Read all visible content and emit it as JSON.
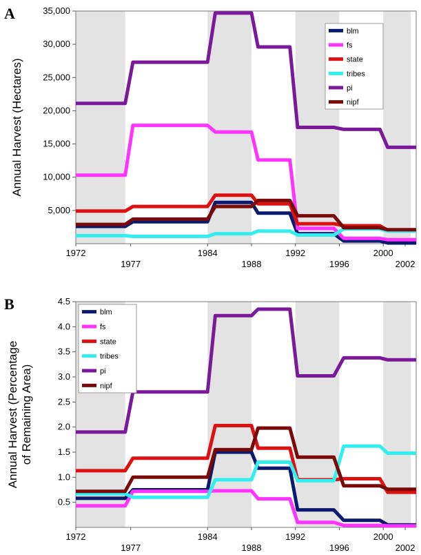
{
  "chart_data": [
    {
      "panel_label": "A",
      "type": "line",
      "ylabel": "Annual Harvest (Hectares)",
      "ylim": [
        0,
        35000
      ],
      "xlim": [
        1972,
        2003
      ],
      "yticks": [
        5000,
        10000,
        15000,
        20000,
        25000,
        30000,
        35000
      ],
      "ytick_labels": [
        "5,000",
        "10,000",
        "15,000",
        "20,000",
        "25,000",
        "30,000",
        "35,000"
      ],
      "xticks_top_row": [
        1972,
        1984,
        1992,
        2000
      ],
      "xticks_bottom_row": [
        1977,
        1988,
        1996,
        2002
      ],
      "shaded_bands": [
        [
          1972,
          1976.5
        ],
        [
          1984,
          1988
        ],
        [
          1992,
          1996
        ],
        [
          2000,
          2002.5
        ]
      ],
      "legend_position": "top-right",
      "series": [
        {
          "name": "blm",
          "color": "#0a1a6e",
          "points": [
            [
              1972,
              2600
            ],
            [
              1976.5,
              2600
            ],
            [
              1977.2,
              3300
            ],
            [
              1984,
              3300
            ],
            [
              1984.7,
              6200
            ],
            [
              1988,
              6200
            ],
            [
              1988.6,
              4600
            ],
            [
              1991.5,
              4600
            ],
            [
              1992.2,
              1500
            ],
            [
              1995.5,
              1500
            ],
            [
              1996.4,
              400
            ],
            [
              1999.7,
              400
            ],
            [
              2000.4,
              100
            ],
            [
              2003,
              100
            ]
          ]
        },
        {
          "name": "fs",
          "color": "#ff33ff",
          "points": [
            [
              1972,
              10300
            ],
            [
              1976.5,
              10300
            ],
            [
              1977.2,
              17800
            ],
            [
              1984,
              17800
            ],
            [
              1984.7,
              16800
            ],
            [
              1988,
              16800
            ],
            [
              1988.6,
              12600
            ],
            [
              1991.5,
              12600
            ],
            [
              1992.2,
              2300
            ],
            [
              1995.5,
              2300
            ],
            [
              1996.4,
              800
            ],
            [
              1999.7,
              800
            ],
            [
              2000.4,
              600
            ],
            [
              2003,
              600
            ]
          ]
        },
        {
          "name": "state",
          "color": "#dd1111",
          "points": [
            [
              1972,
              4900
            ],
            [
              1976.5,
              4900
            ],
            [
              1977.2,
              5600
            ],
            [
              1984,
              5600
            ],
            [
              1984.7,
              7300
            ],
            [
              1988,
              7300
            ],
            [
              1988.6,
              6000
            ],
            [
              1991.5,
              6000
            ],
            [
              1992.2,
              3000
            ],
            [
              1995.5,
              3000
            ],
            [
              1996.4,
              2700
            ],
            [
              1999.7,
              2700
            ],
            [
              2000.4,
              2000
            ],
            [
              2003,
              2000
            ]
          ]
        },
        {
          "name": "tribes",
          "color": "#33eeee",
          "points": [
            [
              1972,
              1200
            ],
            [
              1976.5,
              1200
            ],
            [
              1977.2,
              1100
            ],
            [
              1984,
              1100
            ],
            [
              1984.7,
              1500
            ],
            [
              1988,
              1500
            ],
            [
              1988.6,
              1900
            ],
            [
              1991.5,
              1900
            ],
            [
              1992.2,
              1300
            ],
            [
              1995.5,
              1300
            ],
            [
              1996.4,
              2200
            ],
            [
              1999.7,
              2200
            ],
            [
              2000.4,
              1900
            ],
            [
              2003,
              1900
            ]
          ]
        },
        {
          "name": "pi",
          "color": "#7a1a9a",
          "points": [
            [
              1972,
              21100
            ],
            [
              1976.5,
              21100
            ],
            [
              1977.2,
              27300
            ],
            [
              1984,
              27300
            ],
            [
              1984.7,
              34700
            ],
            [
              1988,
              34700
            ],
            [
              1988.6,
              29600
            ],
            [
              1991.5,
              29600
            ],
            [
              1992.2,
              17500
            ],
            [
              1995.5,
              17500
            ],
            [
              1996.4,
              17200
            ],
            [
              1999.7,
              17200
            ],
            [
              2000.4,
              14500
            ],
            [
              2003,
              14500
            ]
          ]
        },
        {
          "name": "nipf",
          "color": "#7a0a0a",
          "points": [
            [
              1972,
              2900
            ],
            [
              1976.5,
              2900
            ],
            [
              1977.2,
              3700
            ],
            [
              1984,
              3700
            ],
            [
              1984.7,
              5600
            ],
            [
              1988,
              5600
            ],
            [
              1988.6,
              6500
            ],
            [
              1991.5,
              6500
            ],
            [
              1992.2,
              4200
            ],
            [
              1995.5,
              4200
            ],
            [
              1996.4,
              2400
            ],
            [
              1999.7,
              2400
            ],
            [
              2000.4,
              2100
            ],
            [
              2003,
              2100
            ]
          ]
        }
      ]
    },
    {
      "panel_label": "B",
      "type": "line",
      "ylabel": "Annual Harvest (Percentage of Remaining Area)",
      "ylabel_lines": [
        "Annual Harvest (Percentage",
        "of Remaining Area)"
      ],
      "ylim": [
        0,
        4.5
      ],
      "xlim": [
        1972,
        2003
      ],
      "yticks": [
        0.5,
        1.0,
        1.5,
        2.0,
        2.5,
        3.0,
        3.5,
        4.0,
        4.5
      ],
      "ytick_labels": [
        "0.5",
        "1.0",
        "1.5",
        "2.0",
        "2.5",
        "3.0",
        "3.5",
        "4.0",
        "4.5"
      ],
      "xticks_top_row": [
        1972,
        1984,
        1992,
        2000
      ],
      "xticks_bottom_row": [
        1977,
        1988,
        1996,
        2002
      ],
      "shaded_bands": [
        [
          1972,
          1976.5
        ],
        [
          1984,
          1988
        ],
        [
          1992,
          1996
        ],
        [
          2000,
          2002.5
        ]
      ],
      "legend_position": "top-left",
      "series": [
        {
          "name": "blm",
          "color": "#0a1a6e",
          "points": [
            [
              1972,
              0.58
            ],
            [
              1976.5,
              0.58
            ],
            [
              1977.2,
              0.75
            ],
            [
              1984,
              0.75
            ],
            [
              1984.7,
              1.5
            ],
            [
              1988,
              1.5
            ],
            [
              1988.6,
              1.18
            ],
            [
              1991.5,
              1.18
            ],
            [
              1992.2,
              0.35
            ],
            [
              1995.5,
              0.35
            ],
            [
              1996.4,
              0.14
            ],
            [
              1999.7,
              0.14
            ],
            [
              2000.4,
              0.05
            ],
            [
              2003,
              0.05
            ]
          ]
        },
        {
          "name": "fs",
          "color": "#ff33ff",
          "points": [
            [
              1972,
              0.43
            ],
            [
              1976.5,
              0.43
            ],
            [
              1977.2,
              0.72
            ],
            [
              1984,
              0.72
            ],
            [
              1984.7,
              0.73
            ],
            [
              1988,
              0.73
            ],
            [
              1988.6,
              0.57
            ],
            [
              1991.5,
              0.57
            ],
            [
              1992.2,
              0.1
            ],
            [
              1995.5,
              0.1
            ],
            [
              1996.4,
              0.04
            ],
            [
              1999.7,
              0.04
            ],
            [
              2000.4,
              0.03
            ],
            [
              2003,
              0.03
            ]
          ]
        },
        {
          "name": "state",
          "color": "#dd1111",
          "points": [
            [
              1972,
              1.13
            ],
            [
              1976.5,
              1.13
            ],
            [
              1977.2,
              1.38
            ],
            [
              1984,
              1.38
            ],
            [
              1984.7,
              2.03
            ],
            [
              1988,
              2.03
            ],
            [
              1988.6,
              1.58
            ],
            [
              1991.5,
              1.58
            ],
            [
              1992.2,
              0.95
            ],
            [
              1995.5,
              0.95
            ],
            [
              1996.4,
              0.97
            ],
            [
              1999.7,
              0.97
            ],
            [
              2000.4,
              0.7
            ],
            [
              2003,
              0.7
            ]
          ]
        },
        {
          "name": "tribes",
          "color": "#33eeee",
          "points": [
            [
              1972,
              0.67
            ],
            [
              1976.5,
              0.67
            ],
            [
              1977.2,
              0.6
            ],
            [
              1984,
              0.6
            ],
            [
              1984.7,
              0.95
            ],
            [
              1988,
              0.95
            ],
            [
              1988.6,
              1.3
            ],
            [
              1991.5,
              1.3
            ],
            [
              1992.2,
              0.93
            ],
            [
              1995.5,
              0.93
            ],
            [
              1996.4,
              1.62
            ],
            [
              1999.7,
              1.62
            ],
            [
              2000.4,
              1.48
            ],
            [
              2003,
              1.48
            ]
          ]
        },
        {
          "name": "pi",
          "color": "#7a1a9a",
          "points": [
            [
              1972,
              1.9
            ],
            [
              1976.5,
              1.9
            ],
            [
              1977.2,
              2.7
            ],
            [
              1984,
              2.7
            ],
            [
              1984.7,
              4.22
            ],
            [
              1988,
              4.22
            ],
            [
              1988.6,
              4.35
            ],
            [
              1991.5,
              4.35
            ],
            [
              1992.2,
              3.02
            ],
            [
              1995.5,
              3.02
            ],
            [
              1996.4,
              3.38
            ],
            [
              1999.7,
              3.38
            ],
            [
              2000.4,
              3.34
            ],
            [
              2003,
              3.34
            ]
          ]
        },
        {
          "name": "nipf",
          "color": "#7a0a0a",
          "points": [
            [
              1972,
              0.72
            ],
            [
              1976.5,
              0.72
            ],
            [
              1977.2,
              1.0
            ],
            [
              1984,
              1.0
            ],
            [
              1984.7,
              1.55
            ],
            [
              1988,
              1.55
            ],
            [
              1988.6,
              1.98
            ],
            [
              1991.5,
              1.98
            ],
            [
              1992.2,
              1.4
            ],
            [
              1995.5,
              1.4
            ],
            [
              1996.4,
              0.83
            ],
            [
              1999.7,
              0.83
            ],
            [
              2000.4,
              0.76
            ],
            [
              2003,
              0.76
            ]
          ]
        }
      ]
    }
  ]
}
